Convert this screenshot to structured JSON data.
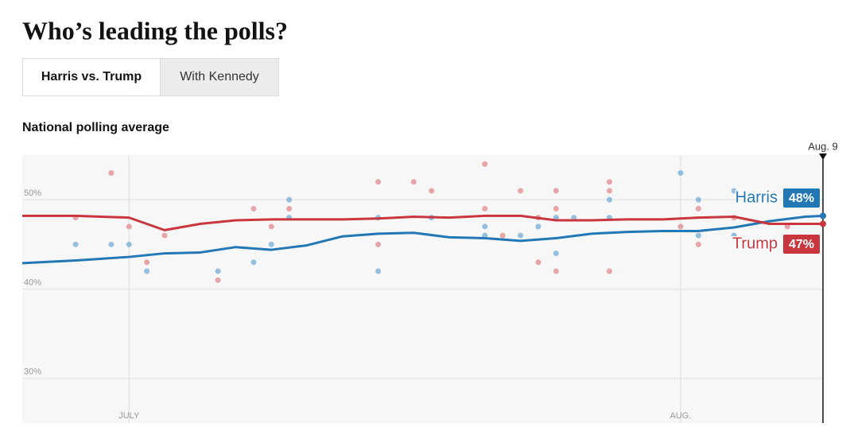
{
  "title": "Who’s leading the polls?",
  "tabs": [
    {
      "label": "Harris vs. Trump",
      "selected": true
    },
    {
      "label": "With Kennedy",
      "selected": false
    }
  ],
  "chart_data": {
    "type": "line",
    "title": "National polling average",
    "xlim": [
      -6,
      39
    ],
    "xticks": [
      {
        "value": 0,
        "label": "JULY"
      },
      {
        "value": 31,
        "label": "AUG."
      }
    ],
    "ylim": [
      25,
      55
    ],
    "yticks": [
      {
        "value": 30,
        "label": "30%"
      },
      {
        "value": 40,
        "label": "40%"
      },
      {
        "value": 50,
        "label": "50%"
      }
    ],
    "grid": true,
    "marker": {
      "value": 39,
      "label": "Aug. 9"
    },
    "x": [
      -6,
      -3,
      0,
      2,
      4,
      6,
      8,
      10,
      12,
      14,
      16,
      18,
      20,
      22,
      24,
      26,
      28,
      30,
      32,
      34,
      36,
      38,
      39
    ],
    "series": [
      {
        "name": "Harris",
        "color": "#2278b5",
        "dot_color": "#74acd6",
        "values": [
          42.9,
          43.2,
          43.6,
          44.0,
          44.1,
          44.7,
          44.4,
          44.9,
          45.9,
          46.2,
          46.3,
          45.8,
          45.7,
          45.4,
          45.7,
          46.2,
          46.4,
          46.5,
          46.5,
          46.9,
          47.6,
          48.1,
          48.2
        ],
        "value_labels": [
          null,
          null,
          null,
          null,
          null,
          null,
          null,
          null,
          null,
          null,
          null,
          null,
          null,
          null,
          null,
          null,
          null,
          null,
          null,
          null,
          null,
          null,
          "48%"
        ],
        "poll_x": [
          -3,
          -1,
          0,
          1,
          5,
          7,
          8,
          9,
          9,
          14,
          14,
          17,
          20,
          20,
          22,
          23,
          24,
          24,
          25,
          27,
          27,
          31,
          32,
          32,
          34,
          34
        ],
        "poll_values": [
          45,
          45,
          45,
          42,
          42,
          43,
          45,
          50,
          48,
          42,
          48,
          48,
          47,
          46,
          46,
          47,
          48,
          44,
          48,
          48,
          50,
          53,
          50,
          46,
          51,
          46
        ]
      },
      {
        "name": "Trump",
        "color": "#c9363e",
        "dot_color": "#e28a8f",
        "values": [
          48.2,
          48.2,
          48.0,
          46.6,
          47.3,
          47.7,
          47.8,
          47.8,
          47.8,
          47.9,
          48.1,
          48.0,
          48.2,
          48.2,
          47.7,
          47.7,
          47.8,
          47.8,
          48.0,
          48.1,
          47.3,
          47.3,
          47.3
        ],
        "value_labels": [
          null,
          null,
          null,
          null,
          null,
          null,
          null,
          null,
          null,
          null,
          null,
          null,
          null,
          null,
          null,
          null,
          null,
          null,
          null,
          null,
          null,
          null,
          "47%"
        ],
        "poll_x": [
          -3,
          -1,
          0,
          1,
          2,
          5,
          7,
          8,
          9,
          14,
          14,
          16,
          17,
          20,
          20,
          21,
          22,
          23,
          24,
          24,
          23,
          24,
          27,
          27,
          27,
          31,
          32,
          32,
          34,
          37
        ],
        "poll_values": [
          48,
          53,
          47,
          43,
          46,
          41,
          49,
          47,
          49,
          52,
          45,
          52,
          51,
          54,
          49,
          46,
          51,
          48,
          51,
          49,
          43,
          42,
          52,
          51,
          42,
          47,
          49,
          45,
          48,
          47
        ]
      }
    ]
  }
}
